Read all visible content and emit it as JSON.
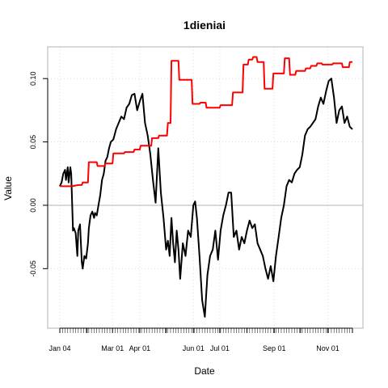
{
  "chart_data": {
    "type": "line",
    "title": "1dieniai",
    "xlabel": "Date",
    "ylabel": "Value",
    "ylim": [
      -0.097,
      0.125
    ],
    "xlim": [
      "2004-01-01",
      "2004-11-29"
    ],
    "grid": true,
    "x_ticks": [
      {
        "label": "Jan 04",
        "date": "2004-01-01"
      },
      {
        "label": "Mar 01",
        "date": "2004-03-01"
      },
      {
        "label": "Apr 01",
        "date": "2004-04-01"
      },
      {
        "label": "Jun 01",
        "date": "2004-06-01"
      },
      {
        "label": "Jul 01",
        "date": "2004-07-01"
      },
      {
        "label": "Sep 01",
        "date": "2004-09-01"
      },
      {
        "label": "Nov 01",
        "date": "2004-11-01"
      }
    ],
    "y_ticks": [
      {
        "label": "-0.05",
        "value": -0.05
      },
      {
        "label": "0.00",
        "value": 0.0
      },
      {
        "label": "0.05",
        "value": 0.05
      },
      {
        "label": "0.10",
        "value": 0.1
      }
    ],
    "zero_line": 0.0,
    "colors": {
      "black_series": "#000000",
      "red_series": "#ff0000",
      "grid": "#d9d9d9",
      "zero_line": "#b3b3b3",
      "frame": "#b3b3b3"
    },
    "series": [
      {
        "color": "#000000",
        "x": [
          "2004-01-01",
          "2004-01-03",
          "2004-01-05",
          "2004-01-07",
          "2004-01-08",
          "2004-01-10",
          "2004-01-11",
          "2004-01-13",
          "2004-01-14",
          "2004-01-16",
          "2004-01-17",
          "2004-01-19",
          "2004-01-21",
          "2004-01-22",
          "2004-01-24",
          "2004-01-26",
          "2004-01-27",
          "2004-01-29",
          "2004-01-31",
          "2004-02-02",
          "2004-02-03",
          "2004-02-05",
          "2004-02-07",
          "2004-02-09",
          "2004-02-10",
          "2004-02-12",
          "2004-02-14",
          "2004-02-16",
          "2004-02-18",
          "2004-02-20",
          "2004-02-22",
          "2004-02-24",
          "2004-02-26",
          "2004-02-28",
          "2004-03-02",
          "2004-03-05",
          "2004-03-08",
          "2004-03-11",
          "2004-03-14",
          "2004-03-17",
          "2004-03-20",
          "2004-03-23",
          "2004-03-26",
          "2004-03-29",
          "2004-04-01",
          "2004-04-04",
          "2004-04-07",
          "2004-04-10",
          "2004-04-13",
          "2004-04-16",
          "2004-04-19",
          "2004-04-22",
          "2004-04-25",
          "2004-04-28",
          "2004-05-01",
          "2004-05-03",
          "2004-05-05",
          "2004-05-07",
          "2004-05-09",
          "2004-05-11",
          "2004-05-13",
          "2004-05-15",
          "2004-05-17",
          "2004-05-20",
          "2004-05-23",
          "2004-05-26",
          "2004-05-29",
          "2004-06-01",
          "2004-06-03",
          "2004-06-05",
          "2004-06-08",
          "2004-06-11",
          "2004-06-14",
          "2004-06-17",
          "2004-06-20",
          "2004-06-23",
          "2004-06-26",
          "2004-06-29",
          "2004-07-02",
          "2004-07-05",
          "2004-07-08",
          "2004-07-11",
          "2004-07-14",
          "2004-07-17",
          "2004-07-20",
          "2004-07-23",
          "2004-07-26",
          "2004-07-29",
          "2004-08-01",
          "2004-08-04",
          "2004-08-07",
          "2004-08-10",
          "2004-08-13",
          "2004-08-16",
          "2004-08-19",
          "2004-08-22",
          "2004-08-25",
          "2004-08-28",
          "2004-08-31",
          "2004-09-03",
          "2004-09-06",
          "2004-09-09",
          "2004-09-12",
          "2004-09-15",
          "2004-09-18",
          "2004-09-21",
          "2004-09-24",
          "2004-09-27",
          "2004-09-30",
          "2004-10-03",
          "2004-10-06",
          "2004-10-09",
          "2004-10-12",
          "2004-10-15",
          "2004-10-18",
          "2004-10-21",
          "2004-10-24",
          "2004-10-27",
          "2004-10-30",
          "2004-11-02",
          "2004-11-05",
          "2004-11-08",
          "2004-11-11",
          "2004-11-14",
          "2004-11-17",
          "2004-11-20",
          "2004-11-23",
          "2004-11-26",
          "2004-11-29"
        ],
        "values": [
          0.015,
          0.018,
          0.025,
          0.028,
          0.02,
          0.03,
          0.018,
          0.03,
          0.025,
          -0.02,
          -0.018,
          -0.022,
          -0.04,
          -0.02,
          -0.015,
          -0.045,
          -0.05,
          -0.04,
          -0.042,
          -0.03,
          -0.018,
          -0.008,
          -0.005,
          -0.01,
          -0.006,
          -0.008,
          0.0,
          0.008,
          0.02,
          0.025,
          0.035,
          0.038,
          0.045,
          0.05,
          0.052,
          0.06,
          0.065,
          0.07,
          0.068,
          0.077,
          0.08,
          0.087,
          0.088,
          0.075,
          0.082,
          0.088,
          0.065,
          0.055,
          0.04,
          0.02,
          0.002,
          0.045,
          0.01,
          -0.01,
          -0.035,
          -0.028,
          -0.04,
          -0.01,
          -0.03,
          -0.045,
          -0.02,
          -0.035,
          -0.058,
          -0.03,
          -0.04,
          -0.02,
          -0.025,
          0.0,
          0.003,
          -0.01,
          -0.04,
          -0.075,
          -0.088,
          -0.055,
          -0.04,
          -0.035,
          -0.02,
          -0.043,
          -0.02,
          -0.008,
          0.0,
          0.01,
          0.01,
          -0.025,
          -0.02,
          -0.035,
          -0.025,
          -0.03,
          -0.02,
          -0.012,
          -0.018,
          -0.015,
          -0.03,
          -0.035,
          -0.04,
          -0.05,
          -0.058,
          -0.048,
          -0.06,
          -0.04,
          -0.025,
          -0.01,
          0.0,
          0.015,
          0.02,
          0.018,
          0.025,
          0.028,
          0.03,
          0.04,
          0.055,
          0.06,
          0.062,
          0.065,
          0.068,
          0.078,
          0.085,
          0.08,
          0.09,
          0.098,
          0.1,
          0.085,
          0.065,
          0.075,
          0.078,
          0.065,
          0.07,
          0.062,
          0.06
        ]
      },
      {
        "color": "#ff0000",
        "x": [
          "2004-01-01",
          "2004-01-15",
          "2004-01-22",
          "2004-01-26",
          "2004-01-27",
          "2004-02-02",
          "2004-02-03",
          "2004-02-12",
          "2004-02-13",
          "2004-02-21",
          "2004-02-22",
          "2004-03-01",
          "2004-03-02",
          "2004-03-14",
          "2004-03-15",
          "2004-03-25",
          "2004-03-26",
          "2004-04-01",
          "2004-04-02",
          "2004-04-14",
          "2004-04-15",
          "2004-04-22",
          "2004-04-23",
          "2004-05-02",
          "2004-05-03",
          "2004-05-06",
          "2004-05-07",
          "2004-05-15",
          "2004-05-16",
          "2004-05-30",
          "2004-05-31",
          "2004-06-08",
          "2004-06-09",
          "2004-06-15",
          "2004-06-16",
          "2004-07-01",
          "2004-07-02",
          "2004-07-15",
          "2004-07-16",
          "2004-07-27",
          "2004-07-28",
          "2004-08-02",
          "2004-08-03",
          "2004-08-07",
          "2004-08-08",
          "2004-08-12",
          "2004-08-13",
          "2004-08-20",
          "2004-08-21",
          "2004-08-30",
          "2004-08-31",
          "2004-09-12",
          "2004-09-13",
          "2004-09-18",
          "2004-09-19",
          "2004-09-25",
          "2004-09-26",
          "2004-10-06",
          "2004-10-07",
          "2004-10-12",
          "2004-10-13",
          "2004-10-19",
          "2004-10-20",
          "2004-10-25",
          "2004-10-26",
          "2004-11-06",
          "2004-11-07",
          "2004-11-17",
          "2004-11-18",
          "2004-11-25",
          "2004-11-26",
          "2004-11-29"
        ],
        "values": [
          0.015,
          0.015,
          0.016,
          0.016,
          0.018,
          0.018,
          0.034,
          0.034,
          0.031,
          0.031,
          0.033,
          0.033,
          0.041,
          0.041,
          0.042,
          0.042,
          0.044,
          0.044,
          0.047,
          0.047,
          0.053,
          0.053,
          0.055,
          0.055,
          0.065,
          0.065,
          0.114,
          0.114,
          0.099,
          0.099,
          0.08,
          0.08,
          0.081,
          0.081,
          0.077,
          0.077,
          0.079,
          0.079,
          0.089,
          0.089,
          0.111,
          0.111,
          0.115,
          0.115,
          0.117,
          0.117,
          0.113,
          0.113,
          0.092,
          0.092,
          0.104,
          0.104,
          0.116,
          0.116,
          0.103,
          0.103,
          0.106,
          0.106,
          0.108,
          0.108,
          0.11,
          0.11,
          0.112,
          0.112,
          0.111,
          0.111,
          0.112,
          0.112,
          0.109,
          0.109,
          0.113,
          0.113
        ]
      }
    ]
  }
}
